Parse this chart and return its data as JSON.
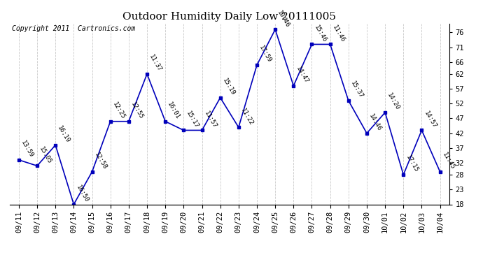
{
  "title": "Outdoor Humidity Daily Low 20111005",
  "copyright": "Copyright 2011  Cartronics.com",
  "dates": [
    "09/11",
    "09/12",
    "09/13",
    "09/14",
    "09/15",
    "09/16",
    "09/17",
    "09/18",
    "09/19",
    "09/20",
    "09/21",
    "09/22",
    "09/23",
    "09/24",
    "09/25",
    "09/26",
    "09/27",
    "09/28",
    "09/29",
    "09/30",
    "10/01",
    "10/02",
    "10/03",
    "10/04"
  ],
  "values": [
    33,
    31,
    38,
    18,
    29,
    46,
    46,
    62,
    46,
    43,
    43,
    54,
    44,
    65,
    77,
    58,
    72,
    72,
    53,
    42,
    49,
    28,
    43,
    29
  ],
  "times": [
    "13:59",
    "15:05",
    "16:19",
    "16:50",
    "12:58",
    "12:25",
    "12:55",
    "11:37",
    "16:01",
    "15:17",
    "11:57",
    "15:19",
    "11:22",
    "17:59",
    "10:46",
    "14:47",
    "15:46",
    "11:46",
    "15:37",
    "14:46",
    "14:20",
    "17:15",
    "14:57",
    "11:45"
  ],
  "line_color": "#0000bb",
  "marker_color": "#0000bb",
  "background_color": "#ffffff",
  "plot_bg_color": "#ffffff",
  "grid_color": "#bbbbbb",
  "title_fontsize": 11,
  "copyright_fontsize": 7,
  "label_fontsize": 6.5,
  "tick_fontsize": 7.5,
  "ylim": [
    18,
    79
  ],
  "yticks_right": [
    18,
    23,
    28,
    32,
    37,
    42,
    47,
    52,
    57,
    62,
    66,
    71,
    76
  ]
}
